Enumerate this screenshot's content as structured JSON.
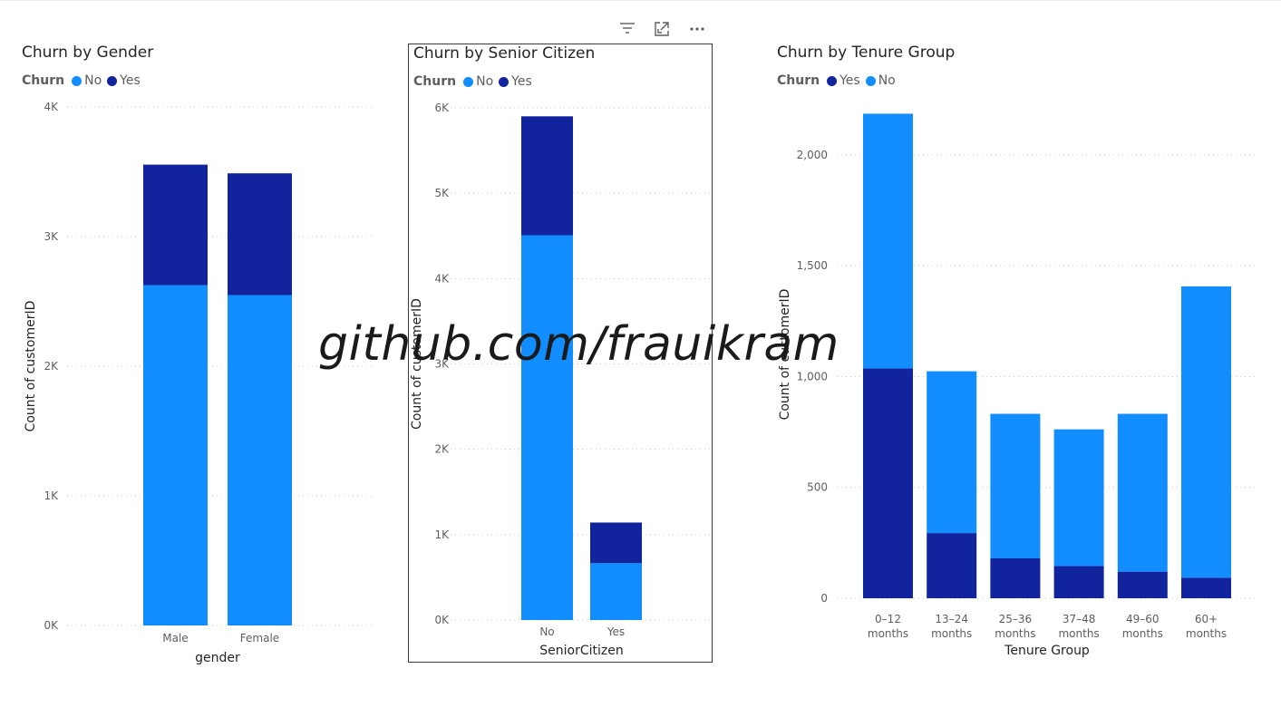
{
  "colors": {
    "no": "#118dff",
    "yes": "#12239e",
    "grid": "#c8c6c4",
    "axis_text": "#605e5c",
    "title": "#252423"
  },
  "header_icons": [
    "filter-icon",
    "focus-mode-icon",
    "more-options-icon"
  ],
  "watermark": "github.com/frauikram",
  "visuals": [
    {
      "id": "gender",
      "title": "Churn by Gender",
      "legend_title": "Churn",
      "legend": [
        {
          "label": "No",
          "key": "no"
        },
        {
          "label": "Yes",
          "key": "yes"
        }
      ]
    },
    {
      "id": "senior",
      "title": "Churn by Senior Citizen",
      "legend_title": "Churn",
      "legend": [
        {
          "label": "No",
          "key": "no"
        },
        {
          "label": "Yes",
          "key": "yes"
        }
      ]
    },
    {
      "id": "tenure",
      "title": "Churn by Tenure Group",
      "legend_title": "Churn",
      "legend": [
        {
          "label": "Yes",
          "key": "yes"
        },
        {
          "label": "No",
          "key": "no"
        }
      ]
    }
  ],
  "chart_data": [
    {
      "type": "bar",
      "stacked": true,
      "title": "Churn by Gender",
      "xlabel": "gender",
      "ylabel": "Count of customerID",
      "categories": [
        "Male",
        "Female"
      ],
      "ylim": [
        0,
        4000
      ],
      "yticks": [
        0,
        1000,
        2000,
        3000,
        4000
      ],
      "ytick_labels": [
        "0K",
        "1K",
        "2K",
        "3K",
        "4K"
      ],
      "grid": true,
      "legend_placement": "top-left",
      "series": [
        {
          "name": "No",
          "values": [
            2625,
            2549
          ]
        },
        {
          "name": "Yes",
          "values": [
            930,
            939
          ]
        }
      ]
    },
    {
      "type": "bar",
      "stacked": true,
      "title": "Churn by Senior Citizen",
      "xlabel": "SeniorCitizen",
      "ylabel": "Count of customerID",
      "categories": [
        "No",
        "Yes"
      ],
      "ylim": [
        0,
        6000
      ],
      "yticks": [
        0,
        1000,
        2000,
        3000,
        4000,
        5000,
        6000
      ],
      "ytick_labels": [
        "0K",
        "1K",
        "2K",
        "3K",
        "4K",
        "5K",
        "6K"
      ],
      "grid": true,
      "legend_placement": "top-left",
      "series": [
        {
          "name": "No",
          "values": [
            4508,
            666
          ]
        },
        {
          "name": "Yes",
          "values": [
            1393,
            476
          ]
        }
      ]
    },
    {
      "type": "bar",
      "stacked": true,
      "title": "Churn by Tenure Group",
      "xlabel": "Tenure Group",
      "ylabel": "Count of customerID",
      "categories": [
        "0–12 months",
        "13–24 months",
        "25–36 months",
        "37–48 months",
        "49–60 months",
        "60+ months"
      ],
      "ylim": [
        0,
        2200
      ],
      "yticks": [
        0,
        500,
        1000,
        1500,
        2000
      ],
      "ytick_labels": [
        "0",
        "500",
        "1,000",
        "1,500",
        "2,000"
      ],
      "grid": true,
      "legend_placement": "top-left",
      "series": [
        {
          "name": "Yes",
          "values": [
            1037,
            294,
            180,
            145,
            120,
            93
          ]
        },
        {
          "name": "No",
          "values": [
            1149,
            730,
            652,
            617,
            712,
            1314
          ]
        }
      ]
    }
  ]
}
